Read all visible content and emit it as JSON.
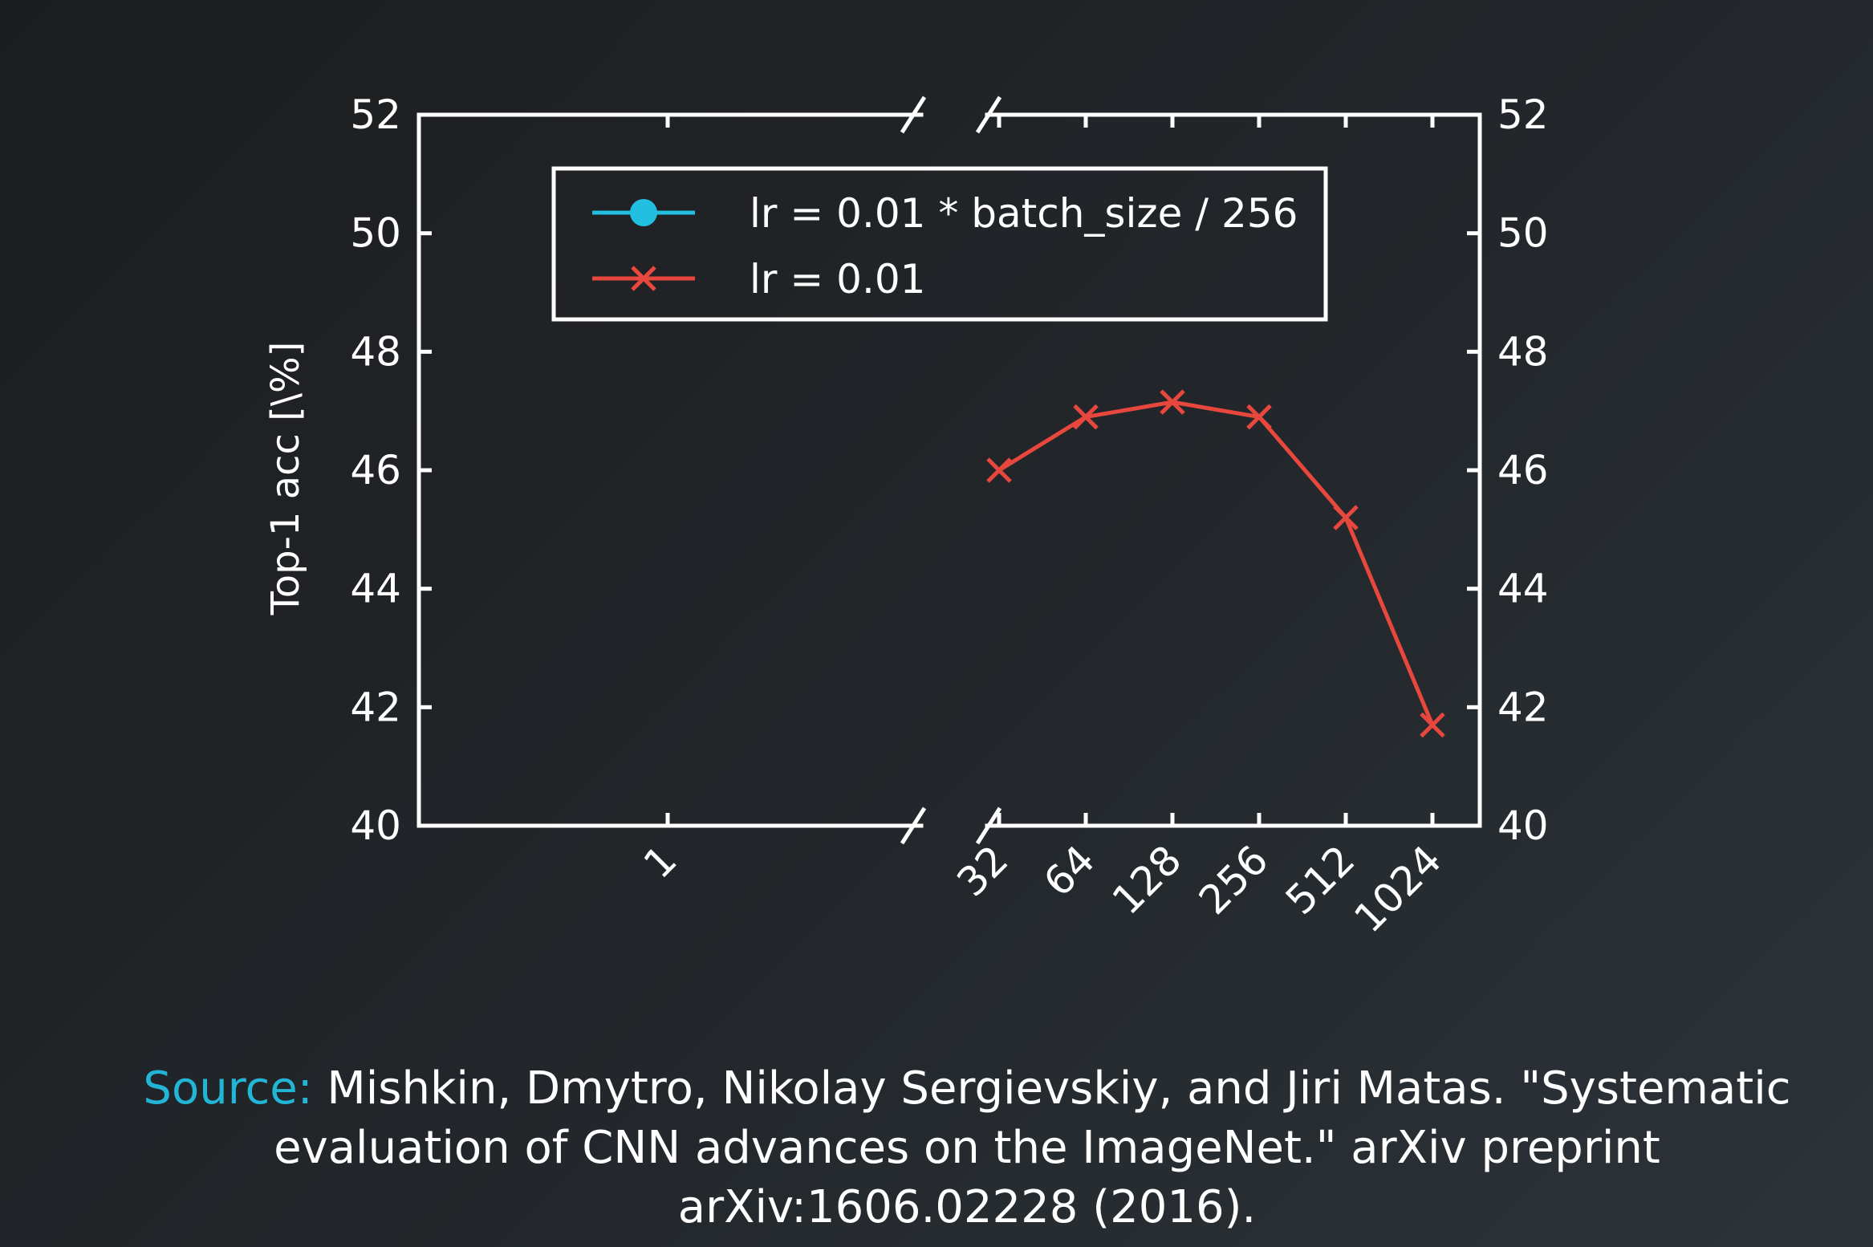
{
  "chart_data": {
    "type": "line",
    "title": "",
    "xlabel": "",
    "ylabel": "Top-1 acc [\\%]",
    "ylim": [
      40,
      52
    ],
    "yticks": [
      40,
      42,
      44,
      46,
      48,
      50,
      52
    ],
    "x_scale": "log2",
    "x_axis_break": true,
    "x_left_segment_ticks": [
      "1"
    ],
    "x_right_segment_ticks": [
      "32",
      "64",
      "128",
      "256",
      "512",
      "1024"
    ],
    "right_axis_ticks": [
      40,
      42,
      44,
      46,
      48,
      50,
      52
    ],
    "grid": false,
    "legend_position": "top",
    "series": [
      {
        "name": "lr = 0.01 * batch_size / 256",
        "color": "#22bfe0",
        "marker": "circle",
        "x": [],
        "y": []
      },
      {
        "name": "lr = 0.01",
        "color": "#e8473d",
        "marker": "x",
        "x": [
          32,
          64,
          128,
          256,
          512,
          1024
        ],
        "y": [
          46.0,
          46.9,
          47.15,
          46.9,
          45.2,
          41.7
        ]
      }
    ]
  },
  "source": {
    "prefix": "Source:",
    "text": " Mishkin, Dmytro, Nikolay Sergievskiy, and Jiri Matas. \"Systematic evaluation of CNN advances on the ImageNet.\" arXiv preprint arXiv:1606.02228 (2016)."
  }
}
